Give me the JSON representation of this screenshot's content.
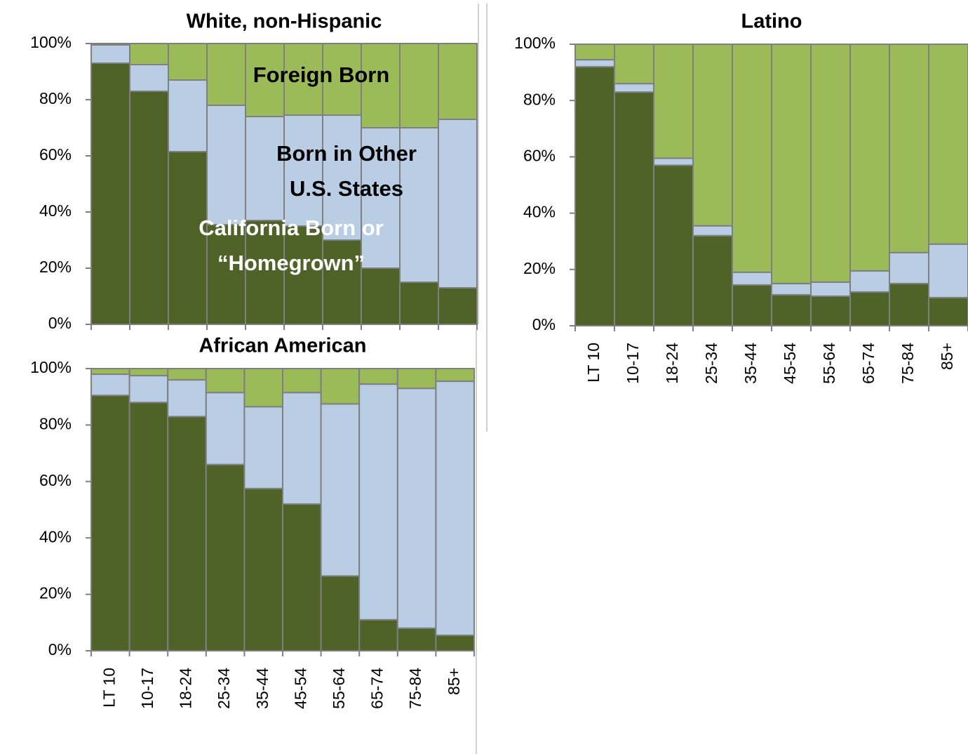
{
  "chart_data": [
    {
      "type": "stacked-bar",
      "title": "White, non-Hispanic",
      "categories": [
        null,
        null,
        null,
        null,
        null,
        null,
        null,
        null,
        null,
        null
      ],
      "series": [
        {
          "name": "California Born or “Homegrown”",
          "color": "#4f6228",
          "values": [
            93,
            83,
            61.5,
            35.5,
            37,
            35,
            30,
            20,
            15,
            13
          ]
        },
        {
          "name": "Born in Other U.S. States",
          "color": "#b9cde5",
          "values": [
            6.5,
            9.5,
            25.5,
            42.5,
            37,
            39.5,
            44.5,
            50,
            55,
            60
          ]
        },
        {
          "name": "Foreign Born",
          "color": "#9bbb59",
          "values": [
            0.5,
            7.5,
            13,
            22,
            26,
            25.5,
            25.5,
            30,
            30,
            27
          ]
        }
      ],
      "ylim": [
        0,
        100
      ],
      "yticks": [
        {
          "value": 0,
          "label": "0%"
        },
        {
          "value": 20,
          "label": "20%"
        },
        {
          "value": 40,
          "label": "40%"
        },
        {
          "value": 60,
          "label": "60%"
        },
        {
          "value": 80,
          "label": "80%"
        },
        {
          "value": 100,
          "label": "100%"
        }
      ]
    },
    {
      "type": "stacked-bar",
      "title": "Latino",
      "categories": [
        "LT 10",
        "10-17",
        "18-24",
        "25-34",
        "35-44",
        "45-54",
        "55-64",
        "65-74",
        "75-84",
        "85+"
      ],
      "series": [
        {
          "color": "#4f6228",
          "values": [
            92,
            83,
            57,
            32,
            14.5,
            11,
            10.5,
            12,
            15,
            10
          ]
        },
        {
          "color": "#b9cde5",
          "values": [
            2.5,
            3,
            2.5,
            3.5,
            4.5,
            4,
            5,
            7.5,
            11,
            19
          ]
        },
        {
          "color": "#9bbb59",
          "values": [
            5.5,
            14,
            40.5,
            64.5,
            81,
            85,
            84.5,
            80.5,
            74,
            71
          ]
        }
      ],
      "ylim": [
        0,
        100
      ],
      "yticks": [
        {
          "value": 0,
          "label": "0%"
        },
        {
          "value": 20,
          "label": "20%"
        },
        {
          "value": 40,
          "label": "40%"
        },
        {
          "value": 60,
          "label": "60%"
        },
        {
          "value": 80,
          "label": "80%"
        },
        {
          "value": 100,
          "label": "100%"
        }
      ]
    },
    {
      "type": "stacked-bar",
      "title": "African American",
      "categories": [
        "LT 10",
        "10-17",
        "18-24",
        "25-34",
        "35-44",
        "45-54",
        "55-64",
        "65-74",
        "75-84",
        "85+"
      ],
      "series": [
        {
          "color": "#4f6228",
          "values": [
            90.5,
            88,
            83,
            66,
            57.5,
            52,
            26.5,
            11,
            8,
            5.5
          ]
        },
        {
          "color": "#b9cde5",
          "values": [
            7.5,
            9.5,
            13,
            25.5,
            29,
            39.5,
            61,
            83.5,
            85,
            90
          ]
        },
        {
          "color": "#9bbb59",
          "values": [
            2,
            2.5,
            4,
            8.5,
            13.5,
            8.5,
            12.5,
            5.5,
            7,
            4.5
          ]
        }
      ],
      "ylim": [
        0,
        100
      ],
      "yticks": [
        {
          "value": 0,
          "label": "0%"
        },
        {
          "value": 20,
          "label": "20%"
        },
        {
          "value": 40,
          "label": "40%"
        },
        {
          "value": 60,
          "label": "60%"
        },
        {
          "value": 80,
          "label": "80%"
        },
        {
          "value": 100,
          "label": "100%"
        }
      ]
    }
  ]
}
